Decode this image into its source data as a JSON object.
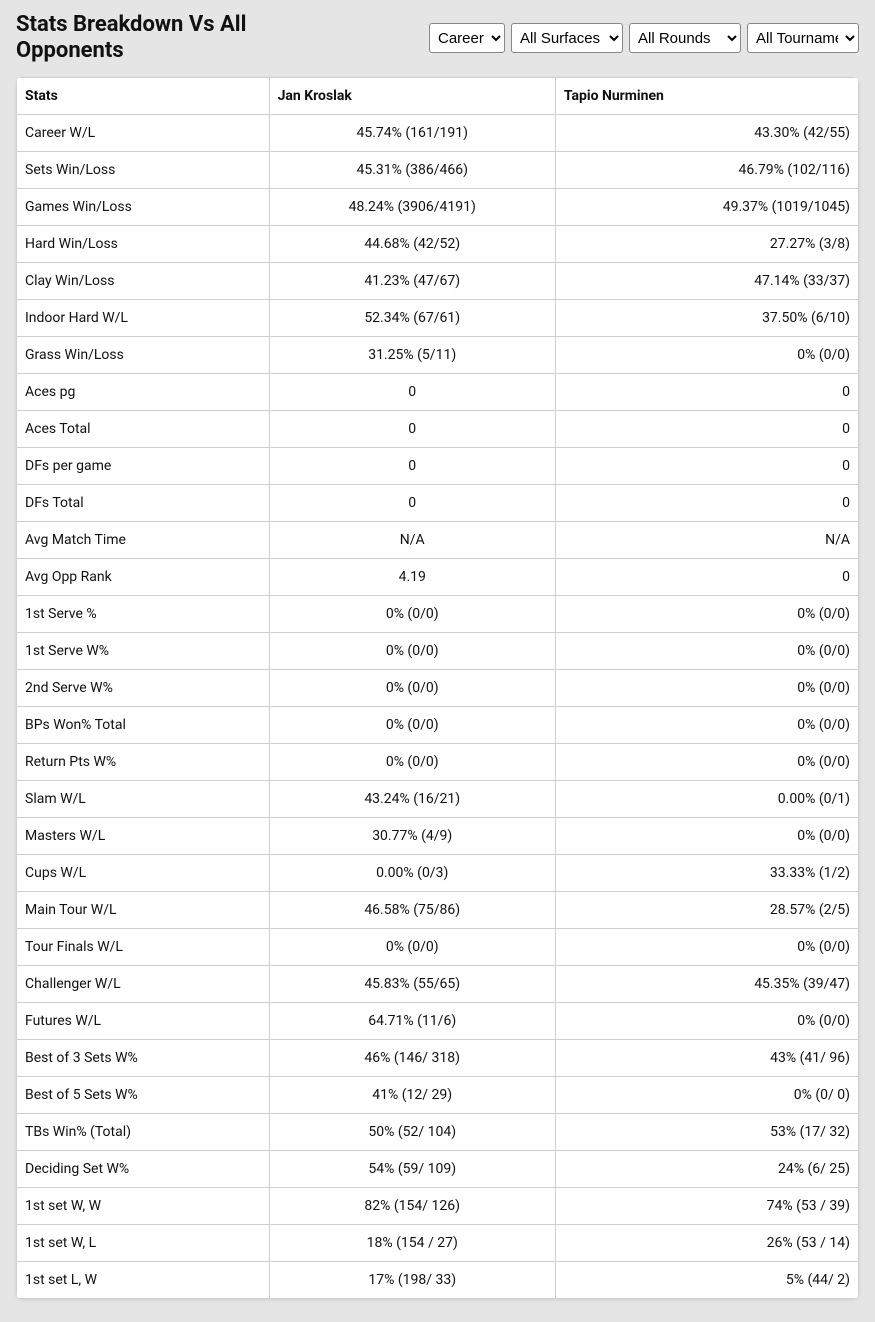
{
  "header": {
    "title": "Stats Breakdown Vs All Opponents"
  },
  "filters": {
    "period": {
      "selected": "Career",
      "options": [
        "Career"
      ]
    },
    "surface": {
      "selected": "All Surfaces",
      "options": [
        "All Surfaces"
      ]
    },
    "round": {
      "selected": "All Rounds",
      "options": [
        "All Rounds"
      ]
    },
    "tourn": {
      "selected": "All Tournaments",
      "options": [
        "All Tournaments"
      ]
    }
  },
  "table": {
    "columns": {
      "stat": "Stats",
      "player1": "Jan Kroslak",
      "player2": "Tapio Nurminen"
    },
    "rows": [
      {
        "stat": "Career W/L",
        "p1": "45.74% (161/191)",
        "p2": "43.30% (42/55)"
      },
      {
        "stat": "Sets Win/Loss",
        "p1": "45.31% (386/466)",
        "p2": "46.79% (102/116)"
      },
      {
        "stat": "Games Win/Loss",
        "p1": "48.24% (3906/4191)",
        "p2": "49.37% (1019/1045)"
      },
      {
        "stat": "Hard Win/Loss",
        "p1": "44.68% (42/52)",
        "p2": "27.27% (3/8)"
      },
      {
        "stat": "Clay Win/Loss",
        "p1": "41.23% (47/67)",
        "p2": "47.14% (33/37)"
      },
      {
        "stat": "Indoor Hard W/L",
        "p1": "52.34% (67/61)",
        "p2": "37.50% (6/10)"
      },
      {
        "stat": "Grass Win/Loss",
        "p1": "31.25% (5/11)",
        "p2": "0% (0/0)"
      },
      {
        "stat": "Aces pg",
        "p1": "0",
        "p2": "0"
      },
      {
        "stat": "Aces Total",
        "p1": "0",
        "p2": "0"
      },
      {
        "stat": "DFs per game",
        "p1": "0",
        "p2": "0"
      },
      {
        "stat": "DFs Total",
        "p1": "0",
        "p2": "0"
      },
      {
        "stat": "Avg Match Time",
        "p1": "N/A",
        "p2": "N/A"
      },
      {
        "stat": "Avg Opp Rank",
        "p1": "4.19",
        "p2": "0"
      },
      {
        "stat": "1st Serve %",
        "p1": "0% (0/0)",
        "p2": "0% (0/0)"
      },
      {
        "stat": "1st Serve W%",
        "p1": "0% (0/0)",
        "p2": "0% (0/0)"
      },
      {
        "stat": "2nd Serve W%",
        "p1": "0% (0/0)",
        "p2": "0% (0/0)"
      },
      {
        "stat": "BPs Won% Total",
        "p1": "0% (0/0)",
        "p2": "0% (0/0)"
      },
      {
        "stat": "Return Pts W%",
        "p1": "0% (0/0)",
        "p2": "0% (0/0)"
      },
      {
        "stat": "Slam W/L",
        "p1": "43.24% (16/21)",
        "p2": "0.00% (0/1)"
      },
      {
        "stat": "Masters W/L",
        "p1": "30.77% (4/9)",
        "p2": "0% (0/0)"
      },
      {
        "stat": "Cups W/L",
        "p1": "0.00% (0/3)",
        "p2": "33.33% (1/2)"
      },
      {
        "stat": "Main Tour W/L",
        "p1": "46.58% (75/86)",
        "p2": "28.57% (2/5)"
      },
      {
        "stat": "Tour Finals W/L",
        "p1": "0% (0/0)",
        "p2": "0% (0/0)"
      },
      {
        "stat": "Challenger W/L",
        "p1": "45.83% (55/65)",
        "p2": "45.35% (39/47)"
      },
      {
        "stat": "Futures W/L",
        "p1": "64.71% (11/6)",
        "p2": "0% (0/0)"
      },
      {
        "stat": "Best of 3 Sets W%",
        "p1": "46% (146/ 318)",
        "p2": "43% (41/ 96)"
      },
      {
        "stat": "Best of 5 Sets W%",
        "p1": "41% (12/ 29)",
        "p2": "0% (0/ 0)"
      },
      {
        "stat": "TBs Win% (Total)",
        "p1": "50% (52/ 104)",
        "p2": "53% (17/ 32)"
      },
      {
        "stat": "Deciding Set W%",
        "p1": "54% (59/ 109)",
        "p2": "24% (6/ 25)"
      },
      {
        "stat": "1st set W, W",
        "p1": "82% (154/ 126)",
        "p2": "74% (53 / 39)"
      },
      {
        "stat": "1st set W, L",
        "p1": "18% (154 / 27)",
        "p2": "26% (53 / 14)"
      },
      {
        "stat": "1st set L, W",
        "p1": "17% (198/ 33)",
        "p2": "5% (44/ 2)"
      }
    ]
  },
  "style": {
    "background_color": "#e5e5e5",
    "card_background": "#ffffff",
    "border_color": "#d0d0d0",
    "text_color": "#111111",
    "font_size_body": 14,
    "font_size_title": 22
  }
}
